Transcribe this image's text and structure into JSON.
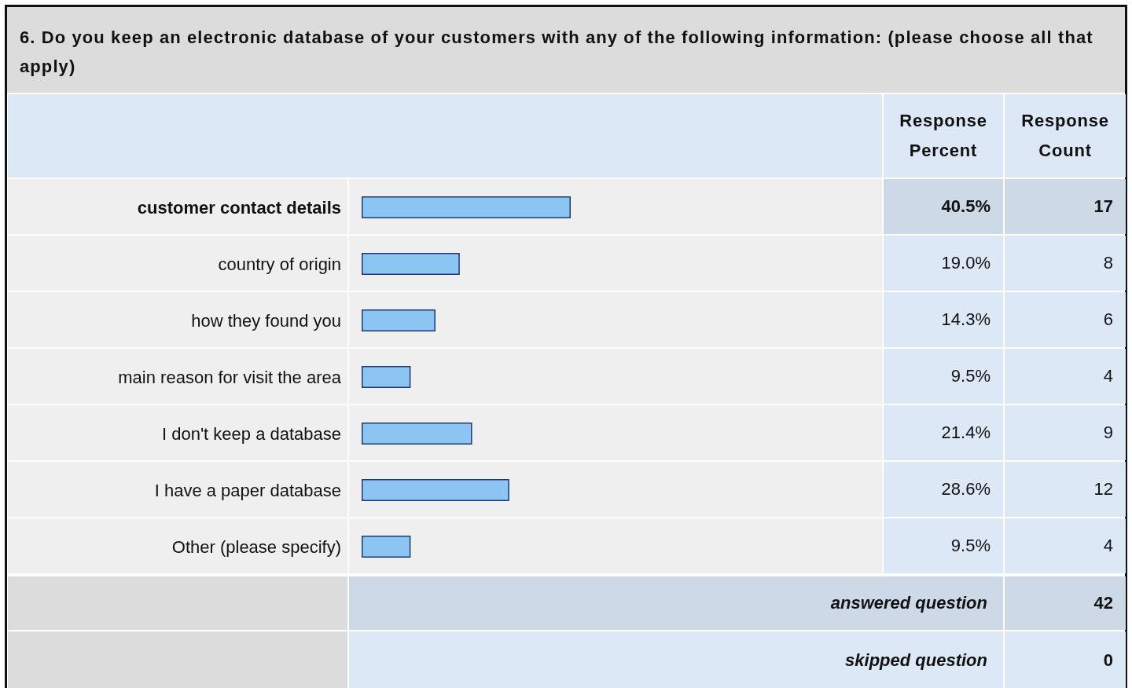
{
  "chart_data": {
    "type": "bar",
    "orientation": "horizontal",
    "title": "6. Do you keep an electronic database of your customers with any of the following information: (please choose all that apply)",
    "categories": [
      "customer contact details",
      "country of origin",
      "how they found you",
      "main reason for visit the area",
      "I don't keep a database",
      "I have a paper database",
      "Other (please specify)"
    ],
    "values": [
      40.5,
      19.0,
      14.3,
      9.5,
      21.4,
      28.6,
      9.5
    ],
    "value_labels": [
      "40.5%",
      "19.0%",
      "14.3%",
      "9.5%",
      "21.4%",
      "28.6%",
      "9.5%"
    ],
    "color": "#8cc4f4",
    "annotations": [
      "Response Percent",
      "Response Count",
      "17",
      "8",
      "6",
      "4",
      "9",
      "12",
      "4",
      "answered question",
      "42",
      "skipped question",
      "0"
    ]
  }
}
